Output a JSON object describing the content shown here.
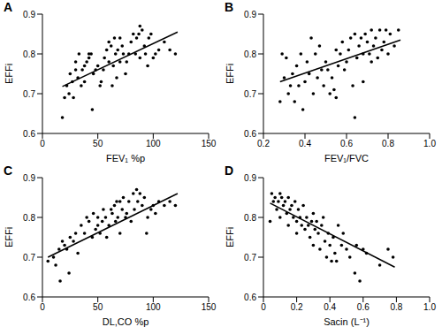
{
  "chart_data": [
    {
      "type": "scatter",
      "title": "A",
      "x_label": "FEV₁ %p",
      "y_label": "EFFi",
      "color": "#000000",
      "x": [
        18,
        20,
        22,
        24,
        25,
        27,
        28,
        30,
        30,
        32,
        33,
        35,
        36,
        38,
        38,
        40,
        42,
        42,
        44,
        45,
        46,
        48,
        50,
        52,
        53,
        55,
        56,
        58,
        60,
        60,
        62,
        63,
        64,
        65,
        66,
        67,
        68,
        70,
        70,
        72,
        73,
        75,
        76,
        78,
        80,
        82,
        84,
        85,
        87,
        88,
        88,
        90,
        92,
        93,
        95,
        96,
        98,
        100,
        102,
        105,
        110,
        115,
        120
      ],
      "values": [
        0.64,
        0.69,
        0.72,
        0.7,
        0.75,
        0.73,
        0.69,
        0.76,
        0.78,
        0.74,
        0.8,
        0.72,
        0.76,
        0.73,
        0.77,
        0.78,
        0.79,
        0.8,
        0.8,
        0.66,
        0.75,
        0.76,
        0.77,
        0.72,
        0.73,
        0.76,
        0.79,
        0.81,
        0.78,
        0.83,
        0.82,
        0.72,
        0.77,
        0.84,
        0.8,
        0.74,
        0.81,
        0.84,
        0.78,
        0.82,
        0.8,
        0.75,
        0.78,
        0.8,
        0.83,
        0.85,
        0.8,
        0.84,
        0.85,
        0.79,
        0.87,
        0.86,
        0.82,
        0.8,
        0.77,
        0.84,
        0.85,
        0.79,
        0.8,
        0.81,
        0.83,
        0.81,
        0.8
      ],
      "fit_line": {
        "x": [
          18,
          122
        ],
        "values": [
          0.718,
          0.855
        ]
      },
      "xlim": [
        0,
        150
      ],
      "xticks": [
        0,
        50,
        100,
        150
      ],
      "ylim": [
        0.6,
        0.9
      ],
      "yticks": [
        0.6,
        0.7,
        0.8,
        0.9
      ]
    },
    {
      "type": "scatter",
      "title": "B",
      "x_label": "FEV₁/FVC",
      "y_label": "EFFi",
      "color": "#000000",
      "x": [
        0.28,
        0.29,
        0.3,
        0.31,
        0.32,
        0.33,
        0.34,
        0.35,
        0.36,
        0.37,
        0.38,
        0.39,
        0.4,
        0.41,
        0.42,
        0.43,
        0.44,
        0.45,
        0.46,
        0.47,
        0.48,
        0.49,
        0.5,
        0.51,
        0.52,
        0.53,
        0.54,
        0.55,
        0.55,
        0.56,
        0.57,
        0.58,
        0.59,
        0.6,
        0.61,
        0.62,
        0.63,
        0.64,
        0.64,
        0.65,
        0.66,
        0.67,
        0.68,
        0.68,
        0.69,
        0.7,
        0.71,
        0.72,
        0.72,
        0.73,
        0.74,
        0.75,
        0.76,
        0.77,
        0.78,
        0.79,
        0.8,
        0.81,
        0.83,
        0.85
      ],
      "values": [
        0.68,
        0.8,
        0.74,
        0.79,
        0.7,
        0.72,
        0.75,
        0.68,
        0.77,
        0.72,
        0.8,
        0.66,
        0.73,
        0.78,
        0.75,
        0.84,
        0.7,
        0.8,
        0.74,
        0.82,
        0.76,
        0.72,
        0.78,
        0.76,
        0.7,
        0.74,
        0.71,
        0.69,
        0.81,
        0.77,
        0.8,
        0.83,
        0.76,
        0.78,
        0.81,
        0.84,
        0.72,
        0.85,
        0.64,
        0.79,
        0.82,
        0.84,
        0.73,
        0.8,
        0.85,
        0.83,
        0.8,
        0.86,
        0.78,
        0.82,
        0.84,
        0.79,
        0.86,
        0.81,
        0.83,
        0.86,
        0.8,
        0.85,
        0.82,
        0.86
      ],
      "fit_line": {
        "x": [
          0.28,
          0.86
        ],
        "values": [
          0.73,
          0.835
        ]
      },
      "xlim": [
        0.2,
        1.0
      ],
      "xticks": [
        0.2,
        0.4,
        0.6,
        0.8,
        {
          "value": 1,
          "label": "1.0"
        }
      ],
      "ylim": [
        0.6,
        0.9
      ],
      "yticks": [
        0.6,
        0.7,
        0.8,
        0.9
      ]
    },
    {
      "type": "scatter",
      "title": "C",
      "x_label": "DL,CO %p",
      "y_label": "EFFi",
      "color": "#000000",
      "x": [
        5,
        10,
        12,
        15,
        16,
        18,
        20,
        22,
        24,
        25,
        28,
        30,
        32,
        35,
        38,
        40,
        42,
        45,
        46,
        48,
        50,
        50,
        52,
        54,
        55,
        57,
        58,
        60,
        62,
        63,
        65,
        66,
        67,
        68,
        70,
        70,
        72,
        73,
        75,
        76,
        78,
        80,
        82,
        83,
        85,
        86,
        88,
        90,
        92,
        94,
        95,
        98,
        100,
        102,
        105,
        110,
        115,
        120
      ],
      "values": [
        0.69,
        0.7,
        0.68,
        0.72,
        0.64,
        0.74,
        0.73,
        0.72,
        0.66,
        0.75,
        0.74,
        0.76,
        0.71,
        0.78,
        0.76,
        0.8,
        0.79,
        0.75,
        0.81,
        0.77,
        0.78,
        0.8,
        0.76,
        0.79,
        0.82,
        0.8,
        0.75,
        0.78,
        0.82,
        0.81,
        0.83,
        0.79,
        0.84,
        0.8,
        0.84,
        0.76,
        0.82,
        0.85,
        0.8,
        0.81,
        0.84,
        0.79,
        0.86,
        0.82,
        0.87,
        0.84,
        0.86,
        0.83,
        0.85,
        0.76,
        0.8,
        0.82,
        0.83,
        0.81,
        0.84,
        0.83,
        0.84,
        0.83
      ],
      "fit_line": {
        "x": [
          5,
          122
        ],
        "values": [
          0.7,
          0.86
        ]
      },
      "xlim": [
        0,
        150
      ],
      "xticks": [
        0,
        50,
        100,
        150
      ],
      "ylim": [
        0.6,
        0.9
      ],
      "yticks": [
        0.6,
        0.7,
        0.8,
        0.9
      ]
    },
    {
      "type": "scatter",
      "title": "D",
      "x_label": "Sacin (L⁻¹)",
      "y_label": "EFFi",
      "color": "#000000",
      "x": [
        0.04,
        0.05,
        0.06,
        0.07,
        0.08,
        0.09,
        0.1,
        0.1,
        0.11,
        0.12,
        0.13,
        0.14,
        0.15,
        0.15,
        0.16,
        0.17,
        0.18,
        0.19,
        0.2,
        0.2,
        0.21,
        0.22,
        0.23,
        0.24,
        0.25,
        0.26,
        0.27,
        0.28,
        0.29,
        0.3,
        0.3,
        0.31,
        0.32,
        0.33,
        0.34,
        0.35,
        0.36,
        0.37,
        0.38,
        0.39,
        0.4,
        0.41,
        0.42,
        0.43,
        0.44,
        0.45,
        0.47,
        0.48,
        0.5,
        0.52,
        0.55,
        0.56,
        0.58,
        0.6,
        0.62,
        0.7,
        0.75,
        0.78
      ],
      "values": [
        0.79,
        0.86,
        0.84,
        0.85,
        0.82,
        0.84,
        0.86,
        0.8,
        0.85,
        0.83,
        0.84,
        0.81,
        0.85,
        0.78,
        0.82,
        0.83,
        0.8,
        0.84,
        0.79,
        0.76,
        0.82,
        0.8,
        0.78,
        0.83,
        0.77,
        0.8,
        0.78,
        0.75,
        0.79,
        0.81,
        0.73,
        0.77,
        0.79,
        0.76,
        0.72,
        0.78,
        0.8,
        0.74,
        0.7,
        0.76,
        0.73,
        0.69,
        0.75,
        0.71,
        0.69,
        0.78,
        0.73,
        0.76,
        0.72,
        0.7,
        0.66,
        0.73,
        0.64,
        0.72,
        0.71,
        0.68,
        0.72,
        0.7
      ],
      "fit_line": {
        "x": [
          0.04,
          0.79
        ],
        "values": [
          0.836,
          0.675
        ]
      },
      "xlim": [
        0,
        1.0
      ],
      "xticks": [
        0,
        0.2,
        0.4,
        0.6,
        0.8,
        {
          "value": 1,
          "label": "1.0"
        }
      ],
      "ylim": [
        0.6,
        0.9
      ],
      "yticks": [
        0.6,
        0.7,
        0.8,
        0.9
      ]
    }
  ]
}
